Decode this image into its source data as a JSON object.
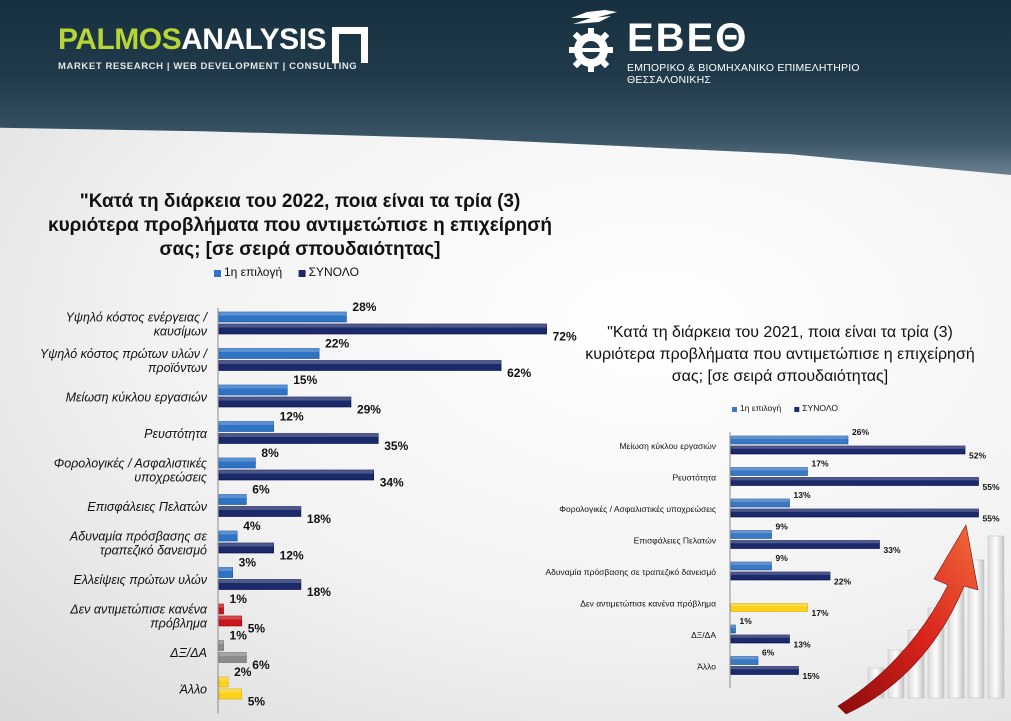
{
  "header": {
    "logo_left": {
      "word_part1": "PALMOS",
      "word_part2": "ANALYSIS",
      "tagline": "MARKET RESEARCH | WEB DEVELOPMENT | CONSULTING"
    },
    "logo_right": {
      "name": "ΕΒΕΘ",
      "tagline": "ΕΜΠΟΡΙΚΟ & ΒΙΟΜΗΧΑΝΙΚΟ ΕΠΙΜΕΛΗΤΗΡΙΟ ΘΕΣΣΑΛΟΝΙΚΗΣ"
    },
    "colors": {
      "green": "#b7d534",
      "navy": "#1f3747"
    }
  },
  "chart_data": [
    {
      "type": "bar",
      "orientation": "horizontal",
      "title": "\"Κατά τη διάρκεια του 2022, ποια είναι τα τρία (3) κυριότερα προβλήματα που αντιμετώπισε η επιχείρησή σας; [σε σειρά σπουδαιότητας]",
      "categories": [
        "Υψηλό κόστος ενέργειας / καυσίμων",
        "Υψηλό κόστος πρώτων υλών / προϊόντων",
        "Μείωση κύκλου εργασιών",
        "Ρευστότητα",
        "Φορολογικές / Ασφαλιστικές υποχρεώσεις",
        "Επισφάλειες Πελατών",
        "Αδυναμία πρόσβασης σε τραπεζικό δανεισμό",
        "Ελλείψεις πρώτων υλών",
        "Δεν αντιμετώπισε κανένα πρόβλημα",
        "ΔΞ/ΔΑ",
        "Άλλο"
      ],
      "series": [
        {
          "name": "1η επιλογή",
          "values": [
            28,
            22,
            15,
            12,
            8,
            6,
            4,
            3,
            1,
            1,
            2
          ],
          "color": "#2f74c4"
        },
        {
          "name": "ΣΥΝΟΛΟ",
          "values": [
            72,
            62,
            29,
            35,
            34,
            18,
            12,
            18,
            5,
            6,
            5
          ],
          "color": "#1b2a6b"
        }
      ],
      "special_colors": {
        "Δεν αντιμετώπισε κανένα πρόβλημα": "#c8141c",
        "ΔΞ/ΔΑ": "#8c8c8c",
        "Άλλο": "#ffd21a"
      },
      "value_suffix": "%",
      "xlim": [
        0,
        100
      ],
      "legend": "top",
      "grid": false
    },
    {
      "type": "bar",
      "orientation": "horizontal",
      "title": "\"Κατά τη διάρκεια του 2021, ποια είναι τα τρία (3) κυριότερα προβλήματα που αντιμετώπισε η επιχείρησή σας; [σε σειρά σπουδαιότητας]",
      "categories": [
        "Μείωση κύκλου εργασιών",
        "Ρευστότητα",
        "Φορολογικές / Ασφαλιστικές υποχρεώσεις",
        "Επισφάλειες Πελατών",
        "Αδυναμία πρόσβασης σε τραπεζικό δανεισμό",
        "Δεν αντιμετώπισε κανένα πρόβλημα",
        "ΔΞ/ΔΑ",
        "Άλλο"
      ],
      "series": [
        {
          "name": "1η επιλογή",
          "values": [
            26,
            17,
            13,
            9,
            9,
            null,
            1,
            6
          ],
          "color": "#3b78c4"
        },
        {
          "name": "ΣΥΝΟΛΟ",
          "values": [
            52,
            55,
            55,
            33,
            22,
            17,
            13,
            15
          ],
          "color": "#1b2a6b"
        }
      ],
      "special_colors": {
        "Δεν αντιμετώπισε κανένα πρόβλημα": "#ffd21a"
      },
      "value_suffix": "%",
      "xlim": [
        0,
        100
      ],
      "legend": "top",
      "grid": false
    }
  ]
}
